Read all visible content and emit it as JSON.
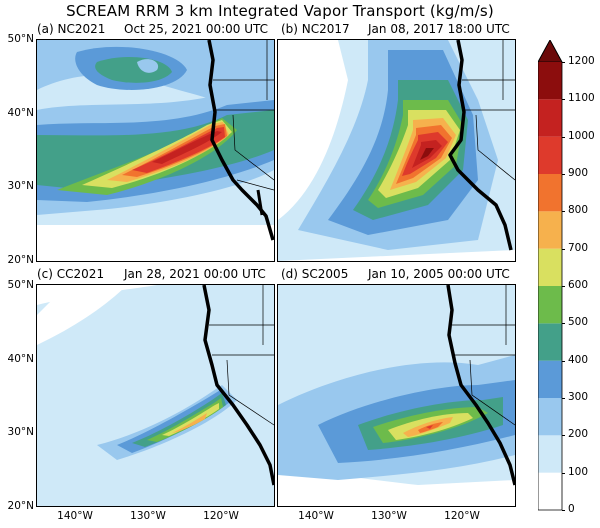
{
  "figure": {
    "title": "SCREAM RRM 3 km Integrated Vapor Transport (kg/m/s)",
    "panels": [
      {
        "label": "(a) NC2021",
        "date": "Oct 25, 2021 00:00 UTC"
      },
      {
        "label": "(b) NC2017",
        "date": "Jan 08, 2017 18:00 UTC"
      },
      {
        "label": "(c) CC2021",
        "date": "Jan 28, 2021 00:00 UTC"
      },
      {
        "label": "(d) SC2005",
        "date": "Jan 10, 2005 00:00 UTC"
      }
    ],
    "y_ticks_top": [
      "50°N",
      "40°N",
      "30°N",
      "20°N"
    ],
    "y_ticks_bottom": [
      "50°N",
      "40°N",
      "30°N",
      "20°N"
    ],
    "x_ticks": [
      "140°W",
      "130°W",
      "120°W"
    ],
    "colorbar": {
      "labels": [
        "0",
        "100",
        "200",
        "300",
        "400",
        "500",
        "600",
        "700",
        "800",
        "900",
        "1000",
        "1100",
        "1200"
      ],
      "colors": [
        "#ffffff",
        "#cfe9f8",
        "#99c8ee",
        "#5b9ad8",
        "#43a089",
        "#6dbb4b",
        "#d9e060",
        "#f6b14d",
        "#f1732e",
        "#de3a2c",
        "#c42220",
        "#8c0d0d"
      ]
    }
  }
}
